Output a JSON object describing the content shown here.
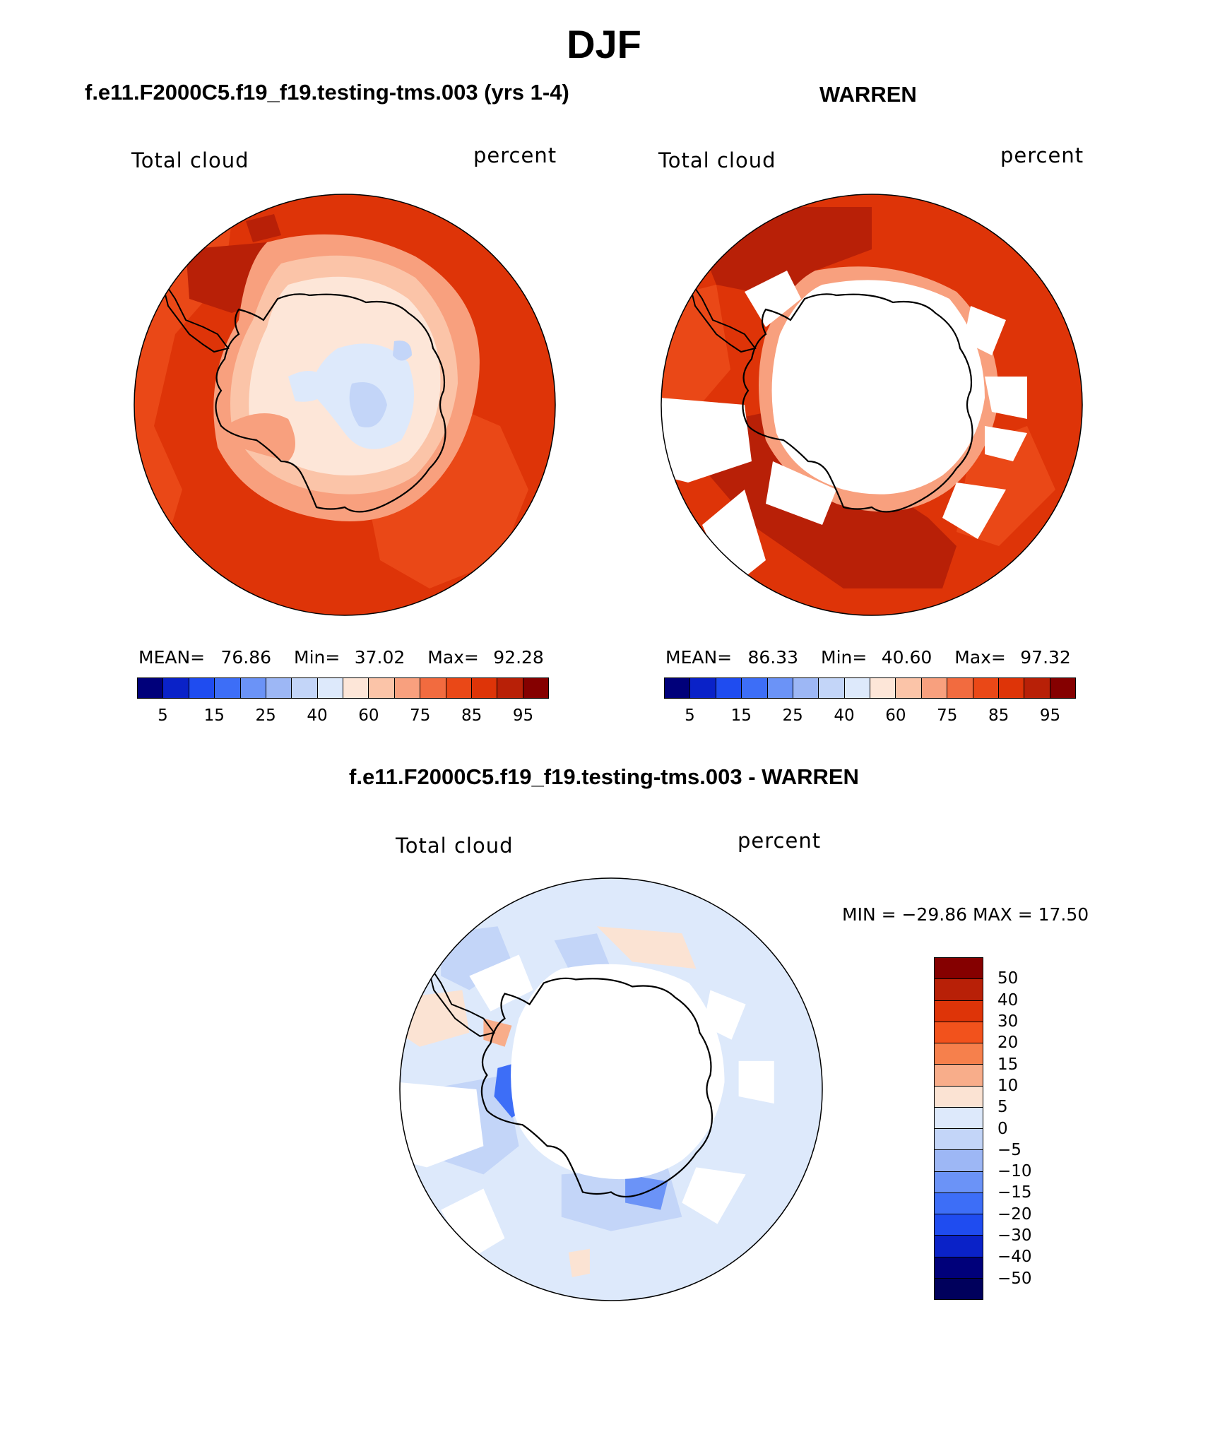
{
  "page_title": "DJF",
  "colors": {
    "abs_scale": [
      "#00007a",
      "#0a22c8",
      "#1f4cf0",
      "#3d6ef7",
      "#6b93f7",
      "#9db7f5",
      "#c3d5f8",
      "#dde9fb",
      "#fde6d8",
      "#fbc4a8",
      "#f8a07e",
      "#f26b3f",
      "#ea4817",
      "#de3408",
      "#b82007",
      "#850000"
    ],
    "diff_scale": [
      "#850000",
      "#b82007",
      "#de3408",
      "#f2521c",
      "#f6804c",
      "#f8ad8a",
      "#fbe3d3",
      "#dde9fb",
      "#c3d5f8",
      "#9db7f5",
      "#6b93f7",
      "#3d6ef7",
      "#1f4cf0",
      "#0a22c8",
      "#00007a",
      "#00005c"
    ],
    "land": "#ffffff",
    "outline": "#000000"
  },
  "panels": {
    "model": {
      "title": "f.e11.F2000C5.f19_f19.testing-tms.003 (yrs 1-4)",
      "variable": "Total cloud",
      "units": "percent",
      "mean_label": "MEAN=",
      "mean": "76.86",
      "min_label": "Min=",
      "min": "37.02",
      "max_label": "Max=",
      "max": "92.28"
    },
    "obs": {
      "title": "WARREN",
      "variable": "Total cloud",
      "units": "percent",
      "mean_label": "MEAN=",
      "mean": "86.33",
      "min_label": "Min=",
      "min": "40.60",
      "max_label": "Max=",
      "max": "97.32"
    },
    "diff": {
      "title": "f.e11.F2000C5.f19_f19.testing-tms.003 - WARREN",
      "variable": "Total cloud",
      "units": "percent",
      "minmax_text": "MIN = −29.86 MAX =  17.50"
    }
  },
  "abs_colorbar_ticks": [
    "5",
    "15",
    "25",
    "40",
    "60",
    "75",
    "85",
    "95"
  ],
  "diff_colorbar_ticks": [
    "50",
    "40",
    "30",
    "20",
    "15",
    "10",
    "5",
    "0",
    "−5",
    "−10",
    "−15",
    "−20",
    "−30",
    "−40",
    "−50"
  ]
}
